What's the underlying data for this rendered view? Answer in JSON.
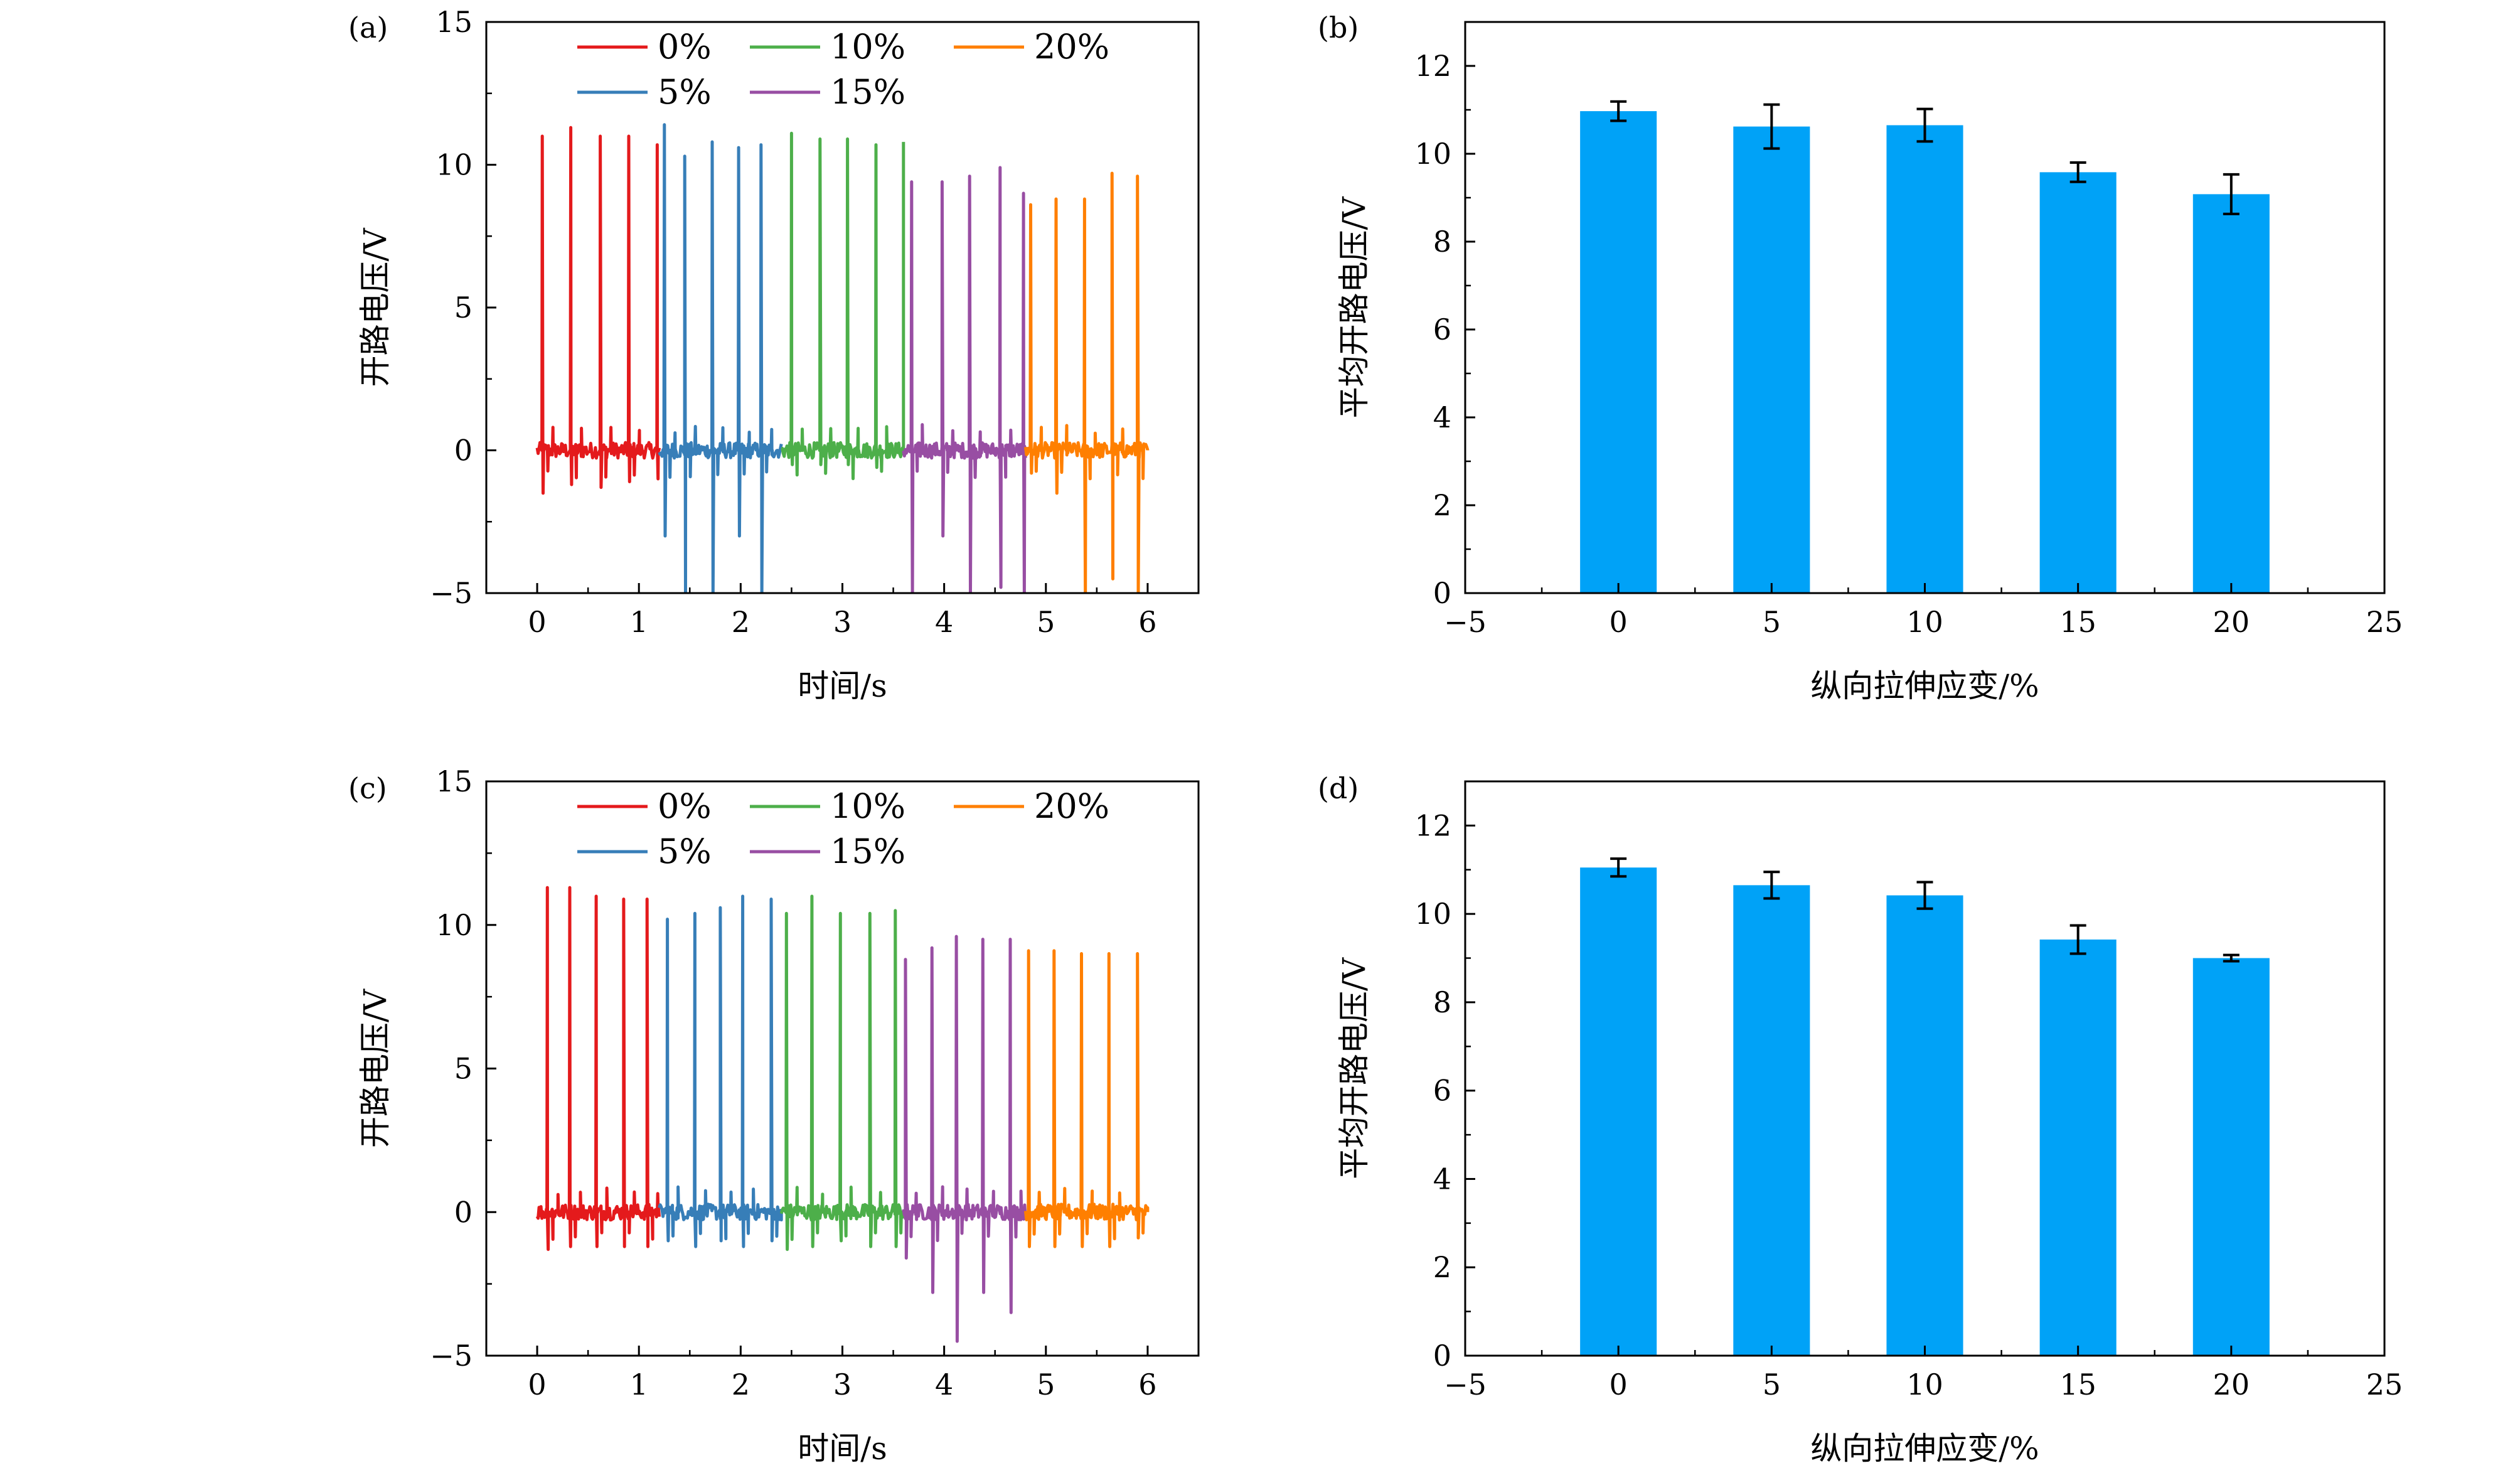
{
  "chart_data": [
    {
      "panel": "(a)",
      "type": "line",
      "xlabel": "时间/s",
      "ylabel": "开路电压/V",
      "xlim": [
        -0.5,
        6.5
      ],
      "ylim": [
        -5,
        15
      ],
      "xticks": [
        0,
        1,
        2,
        3,
        4,
        5,
        6
      ],
      "yticks": [
        -5,
        0,
        5,
        10,
        15
      ],
      "tick_labels_x": [
        "0",
        "1",
        "2",
        "3",
        "4",
        "5",
        "6"
      ],
      "tick_labels_y": [
        "−5",
        "0",
        "5",
        "10",
        "15"
      ],
      "legend_position": "top, inside plot",
      "series": [
        {
          "name": "0%",
          "color": "#e41a1c",
          "x_range": [
            0,
            1.2
          ],
          "peaks": [
            {
              "x": 0.05,
              "y": 11.0,
              "neg": -1.5
            },
            {
              "x": 0.33,
              "y": 11.3,
              "neg": -1.2
            },
            {
              "x": 0.62,
              "y": 11.0,
              "neg": -1.3
            },
            {
              "x": 0.9,
              "y": 11.0,
              "neg": -1.1
            },
            {
              "x": 1.18,
              "y": 10.7,
              "neg": -1.0
            }
          ]
        },
        {
          "name": "5%",
          "color": "#377eb8",
          "x_range": [
            1.2,
            2.4
          ],
          "peaks": [
            {
              "x": 1.25,
              "y": 11.4,
              "neg": -3.0
            },
            {
              "x": 1.45,
              "y": 10.3,
              "neg": -5.0
            },
            {
              "x": 1.72,
              "y": 10.8,
              "neg": -5.0
            },
            {
              "x": 1.98,
              "y": 10.6,
              "neg": -3.0
            },
            {
              "x": 2.2,
              "y": 10.7,
              "neg": -5.0
            }
          ]
        },
        {
          "name": "10%",
          "color": "#4daf4a",
          "x_range": [
            2.4,
            3.6
          ],
          "peaks": [
            {
              "x": 2.5,
              "y": 11.1,
              "neg": -0.5
            },
            {
              "x": 2.78,
              "y": 10.9,
              "neg": -0.5
            },
            {
              "x": 3.05,
              "y": 10.9,
              "neg": -0.5
            },
            {
              "x": 3.33,
              "y": 10.7,
              "neg": -0.6
            },
            {
              "x": 3.6,
              "y": 10.8,
              "neg": -2.7
            }
          ]
        },
        {
          "name": "15%",
          "color": "#984ea3",
          "x_range": [
            3.6,
            4.8
          ],
          "peaks": [
            {
              "x": 3.68,
              "y": 9.4,
              "neg": -5.0
            },
            {
              "x": 3.98,
              "y": 9.4,
              "neg": -3.0
            },
            {
              "x": 4.25,
              "y": 9.6,
              "neg": -5.0
            },
            {
              "x": 4.55,
              "y": 9.9,
              "neg": -4.8
            },
            {
              "x": 4.78,
              "y": 9.0,
              "neg": -5.0
            }
          ]
        },
        {
          "name": "20%",
          "color": "#ff7f00",
          "x_range": [
            4.8,
            6.0
          ],
          "peaks": [
            {
              "x": 4.85,
              "y": 8.6,
              "neg": -0.8
            },
            {
              "x": 5.1,
              "y": 8.8,
              "neg": -1.5
            },
            {
              "x": 5.38,
              "y": 8.8,
              "neg": -5.0
            },
            {
              "x": 5.65,
              "y": 9.7,
              "neg": -4.5
            },
            {
              "x": 5.9,
              "y": 9.6,
              "neg": -5.0
            }
          ]
        }
      ]
    },
    {
      "panel": "(b)",
      "type": "bar",
      "xlabel": "纵向拉伸应变/%",
      "ylabel": "平均开路电压/V",
      "xlim": [
        -5,
        25
      ],
      "ylim": [
        0,
        13
      ],
      "xticks": [
        -5,
        0,
        5,
        10,
        15,
        20,
        25
      ],
      "yticks": [
        0,
        2,
        4,
        6,
        8,
        10,
        12
      ],
      "tick_labels_x": [
        "−5",
        "0",
        "5",
        "10",
        "15",
        "20",
        "25"
      ],
      "tick_labels_y": [
        "0",
        "2",
        "4",
        "6",
        "8",
        "10",
        "12"
      ],
      "bar_color": "#00a2f7",
      "x": [
        0,
        5,
        10,
        15,
        20
      ],
      "values": [
        10.97,
        10.62,
        10.65,
        9.58,
        9.08
      ],
      "errors": [
        0.22,
        0.5,
        0.37,
        0.22,
        0.45
      ]
    },
    {
      "panel": "(c)",
      "type": "line",
      "xlabel": "时间/s",
      "ylabel": "开路电压/V",
      "xlim": [
        -0.5,
        6.5
      ],
      "ylim": [
        -5,
        15
      ],
      "xticks": [
        0,
        1,
        2,
        3,
        4,
        5,
        6
      ],
      "yticks": [
        -5,
        0,
        5,
        10,
        15
      ],
      "tick_labels_x": [
        "0",
        "1",
        "2",
        "3",
        "4",
        "5",
        "6"
      ],
      "tick_labels_y": [
        "−5",
        "0",
        "5",
        "10",
        "15"
      ],
      "legend_position": "top, inside plot",
      "series": [
        {
          "name": "0%",
          "color": "#e41a1c",
          "x_range": [
            0,
            1.2
          ],
          "peaks": [
            {
              "x": 0.1,
              "y": 11.3,
              "neg": -1.3
            },
            {
              "x": 0.32,
              "y": 11.3,
              "neg": -1.2
            },
            {
              "x": 0.58,
              "y": 11.0,
              "neg": -1.2
            },
            {
              "x": 0.85,
              "y": 10.9,
              "neg": -1.2
            },
            {
              "x": 1.08,
              "y": 10.9,
              "neg": -1.2
            }
          ]
        },
        {
          "name": "5%",
          "color": "#377eb8",
          "x_range": [
            1.2,
            2.4
          ],
          "peaks": [
            {
              "x": 1.28,
              "y": 10.2,
              "neg": -1.0
            },
            {
              "x": 1.55,
              "y": 10.4,
              "neg": -1.2
            },
            {
              "x": 1.8,
              "y": 10.6,
              "neg": -1.0
            },
            {
              "x": 2.02,
              "y": 11.0,
              "neg": -1.2
            },
            {
              "x": 2.3,
              "y": 10.9,
              "neg": -1.0
            }
          ]
        },
        {
          "name": "10%",
          "color": "#4daf4a",
          "x_range": [
            2.4,
            3.6
          ],
          "peaks": [
            {
              "x": 2.45,
              "y": 10.4,
              "neg": -1.3
            },
            {
              "x": 2.7,
              "y": 11.0,
              "neg": -1.2
            },
            {
              "x": 2.98,
              "y": 10.4,
              "neg": -1.0
            },
            {
              "x": 3.27,
              "y": 10.4,
              "neg": -1.2
            },
            {
              "x": 3.52,
              "y": 10.5,
              "neg": -1.2
            }
          ]
        },
        {
          "name": "15%",
          "color": "#984ea3",
          "x_range": [
            3.6,
            4.8
          ],
          "peaks": [
            {
              "x": 3.62,
              "y": 8.8,
              "neg": -1.6
            },
            {
              "x": 3.88,
              "y": 9.2,
              "neg": -2.8
            },
            {
              "x": 4.12,
              "y": 9.6,
              "neg": -4.5
            },
            {
              "x": 4.38,
              "y": 9.5,
              "neg": -2.8
            },
            {
              "x": 4.65,
              "y": 9.5,
              "neg": -3.5
            }
          ]
        },
        {
          "name": "20%",
          "color": "#ff7f00",
          "x_range": [
            4.8,
            6.0
          ],
          "peaks": [
            {
              "x": 4.83,
              "y": 9.1,
              "neg": -1.2
            },
            {
              "x": 5.08,
              "y": 9.1,
              "neg": -1.2
            },
            {
              "x": 5.35,
              "y": 9.0,
              "neg": -1.2
            },
            {
              "x": 5.62,
              "y": 9.0,
              "neg": -1.2
            },
            {
              "x": 5.9,
              "y": 9.0,
              "neg": -0.9
            }
          ]
        }
      ]
    },
    {
      "panel": "(d)",
      "type": "bar",
      "xlabel": "纵向拉伸应变/%",
      "ylabel": "平均开路电压/V",
      "xlim": [
        -5,
        25
      ],
      "ylim": [
        0,
        13
      ],
      "xticks": [
        -5,
        0,
        5,
        10,
        15,
        20,
        25
      ],
      "yticks": [
        0,
        2,
        4,
        6,
        8,
        10,
        12
      ],
      "tick_labels_x": [
        "−5",
        "0",
        "5",
        "10",
        "15",
        "20",
        "25"
      ],
      "tick_labels_y": [
        "0",
        "2",
        "4",
        "6",
        "8",
        "10",
        "12"
      ],
      "bar_color": "#00a2f7",
      "x": [
        0,
        5,
        10,
        15,
        20
      ],
      "values": [
        11.05,
        10.65,
        10.42,
        9.42,
        9.0
      ],
      "errors": [
        0.2,
        0.3,
        0.3,
        0.32,
        0.07
      ]
    }
  ]
}
